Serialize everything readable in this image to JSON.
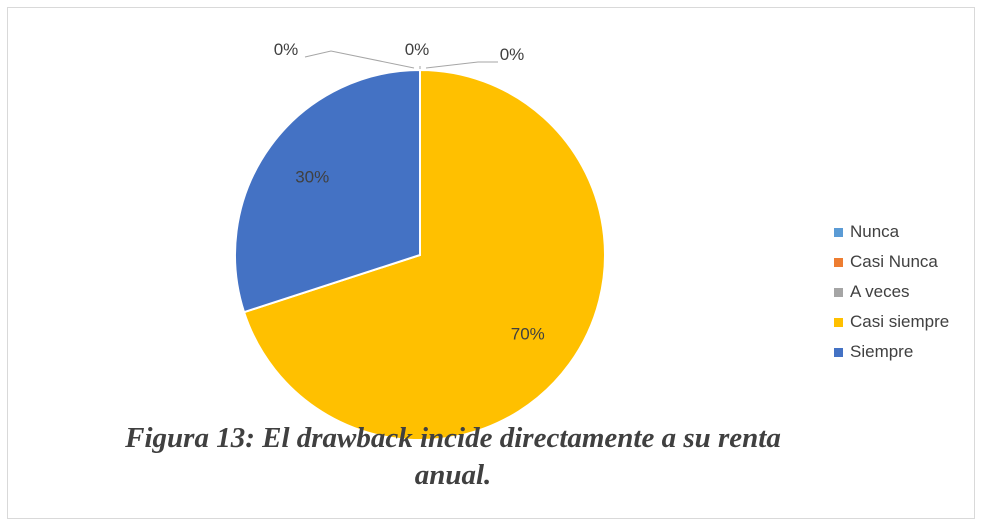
{
  "chart_data": {
    "type": "pie",
    "categories": [
      "Nunca",
      "Casi Nunca",
      "A veces",
      "Casi siempre",
      "Siempre"
    ],
    "values": [
      0,
      0,
      0,
      70,
      30
    ],
    "labels": [
      "0%",
      "0%",
      "0%",
      "70%",
      "30%"
    ],
    "colors": [
      "#5b9bd5",
      "#ed7d31",
      "#a5a5a5",
      "#ffc000",
      "#4472c4"
    ],
    "legend_position": "right"
  },
  "caption": "Figura 13: El drawback incide directamente a su renta anual."
}
